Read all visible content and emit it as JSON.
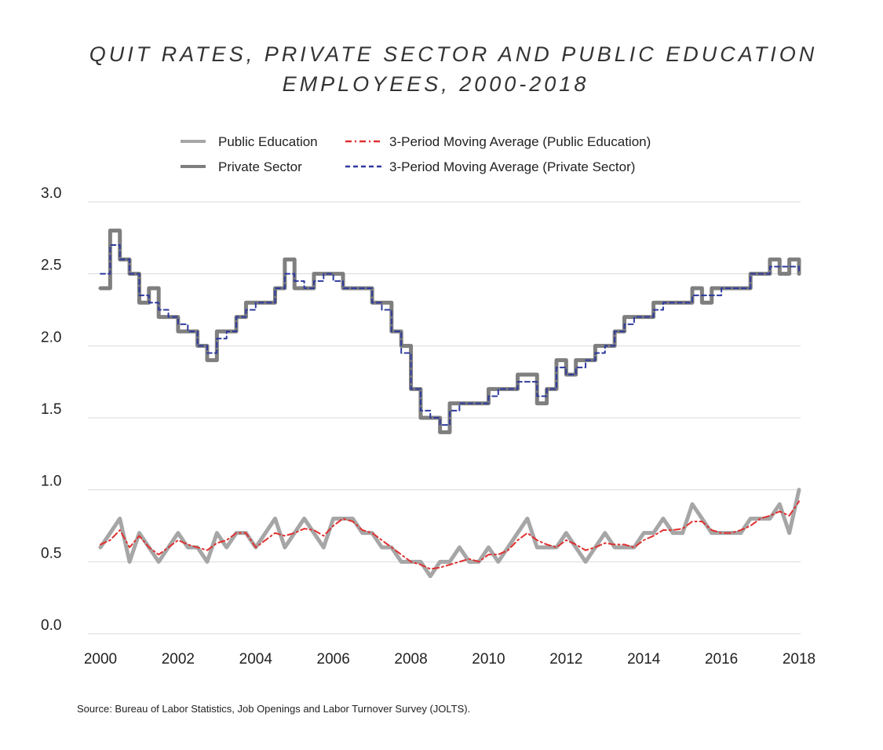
{
  "title_line1": "QUIT RATES, PRIVATE SECTOR AND PUBLIC EDUCATION",
  "title_line2": "EMPLOYEES, 2000-2018",
  "source": "Source: Bureau of Labor Statistics, Job Openings and Labor Turnover Survey (JOLTS).",
  "colors": {
    "public_education": "#a6a6a6",
    "private_sector": "#7f7f7f",
    "ma_public": "#e03030",
    "ma_private": "#2e3a9e",
    "grid": "#d9d9d9"
  },
  "chart_data": {
    "type": "line",
    "title": "QUIT RATES, PRIVATE SECTOR AND PUBLIC EDUCATION EMPLOYEES, 2000-2018",
    "xlabel": "",
    "ylabel": "",
    "ylim": [
      0.0,
      3.0
    ],
    "xlim": [
      2000,
      2018
    ],
    "yticks": [
      "0.0",
      "0.5",
      "1.0",
      "1.5",
      "2.0",
      "2.5",
      "3.0"
    ],
    "xticks": [
      "2000",
      "2002",
      "2004",
      "2006",
      "2008",
      "2010",
      "2012",
      "2014",
      "2016",
      "2018"
    ],
    "grid": true,
    "legend_position": "top",
    "legend": [
      {
        "label": "Public Education",
        "style": "solid",
        "color": "#a6a6a6"
      },
      {
        "label": "3-Period Moving Average (Public Education)",
        "style": "dash-dot",
        "color": "#e03030"
      },
      {
        "label": "Private Sector",
        "style": "solid",
        "color": "#7f7f7f"
      },
      {
        "label": "3-Period Moving Average (Private Sector)",
        "style": "dashed",
        "color": "#2e3a9e"
      }
    ],
    "series": [
      {
        "name": "Private Sector",
        "x": [
          2000.0,
          2000.25,
          2000.5,
          2000.75,
          2001.0,
          2001.25,
          2001.5,
          2001.75,
          2002.0,
          2002.25,
          2002.5,
          2002.75,
          2003.0,
          2003.25,
          2003.5,
          2003.75,
          2004.0,
          2004.25,
          2004.5,
          2004.75,
          2005.0,
          2005.25,
          2005.5,
          2005.75,
          2006.0,
          2006.25,
          2006.5,
          2006.75,
          2007.0,
          2007.25,
          2007.5,
          2007.75,
          2008.0,
          2008.25,
          2008.5,
          2008.75,
          2009.0,
          2009.25,
          2009.5,
          2009.75,
          2010.0,
          2010.25,
          2010.5,
          2010.75,
          2011.0,
          2011.25,
          2011.5,
          2011.75,
          2012.0,
          2012.25,
          2012.5,
          2012.75,
          2013.0,
          2013.25,
          2013.5,
          2013.75,
          2014.0,
          2014.25,
          2014.5,
          2014.75,
          2015.0,
          2015.25,
          2015.5,
          2015.75,
          2016.0,
          2016.25,
          2016.5,
          2016.75,
          2017.0,
          2017.25,
          2017.5,
          2017.75,
          2018.0
        ],
        "values": [
          2.4,
          2.8,
          2.6,
          2.5,
          2.3,
          2.4,
          2.2,
          2.2,
          2.1,
          2.1,
          2.0,
          1.9,
          2.1,
          2.1,
          2.2,
          2.3,
          2.3,
          2.3,
          2.4,
          2.6,
          2.4,
          2.4,
          2.5,
          2.5,
          2.5,
          2.4,
          2.4,
          2.4,
          2.3,
          2.3,
          2.1,
          2.0,
          1.7,
          1.5,
          1.5,
          1.4,
          1.6,
          1.6,
          1.6,
          1.6,
          1.7,
          1.7,
          1.7,
          1.8,
          1.8,
          1.6,
          1.7,
          1.9,
          1.8,
          1.9,
          1.9,
          2.0,
          2.0,
          2.1,
          2.2,
          2.2,
          2.2,
          2.3,
          2.3,
          2.3,
          2.3,
          2.4,
          2.3,
          2.4,
          2.4,
          2.4,
          2.4,
          2.5,
          2.5,
          2.6,
          2.5,
          2.6,
          2.5
        ]
      },
      {
        "name": "3-Period Moving Average (Private Sector)",
        "x": [
          2000.0,
          2000.25,
          2000.5,
          2000.75,
          2001.0,
          2001.25,
          2001.5,
          2001.75,
          2002.0,
          2002.25,
          2002.5,
          2002.75,
          2003.0,
          2003.25,
          2003.5,
          2003.75,
          2004.0,
          2004.25,
          2004.5,
          2004.75,
          2005.0,
          2005.25,
          2005.5,
          2005.75,
          2006.0,
          2006.25,
          2006.5,
          2006.75,
          2007.0,
          2007.25,
          2007.5,
          2007.75,
          2008.0,
          2008.25,
          2008.5,
          2008.75,
          2009.0,
          2009.25,
          2009.5,
          2009.75,
          2010.0,
          2010.25,
          2010.5,
          2010.75,
          2011.0,
          2011.25,
          2011.5,
          2011.75,
          2012.0,
          2012.25,
          2012.5,
          2012.75,
          2013.0,
          2013.25,
          2013.5,
          2013.75,
          2014.0,
          2014.25,
          2014.5,
          2014.75,
          2015.0,
          2015.25,
          2015.5,
          2015.75,
          2016.0,
          2016.25,
          2016.5,
          2016.75,
          2017.0,
          2017.25,
          2017.5,
          2017.75,
          2018.0
        ],
        "values": [
          2.5,
          2.7,
          2.6,
          2.5,
          2.35,
          2.3,
          2.25,
          2.2,
          2.15,
          2.1,
          2.0,
          1.95,
          2.05,
          2.1,
          2.2,
          2.25,
          2.3,
          2.3,
          2.4,
          2.5,
          2.45,
          2.4,
          2.45,
          2.5,
          2.45,
          2.4,
          2.4,
          2.4,
          2.3,
          2.25,
          2.1,
          1.95,
          1.7,
          1.55,
          1.5,
          1.45,
          1.55,
          1.6,
          1.6,
          1.6,
          1.65,
          1.7,
          1.7,
          1.75,
          1.75,
          1.65,
          1.7,
          1.85,
          1.8,
          1.85,
          1.9,
          1.95,
          2.0,
          2.1,
          2.15,
          2.2,
          2.2,
          2.25,
          2.3,
          2.3,
          2.3,
          2.35,
          2.35,
          2.35,
          2.4,
          2.4,
          2.4,
          2.5,
          2.5,
          2.55,
          2.55,
          2.55,
          2.5
        ]
      },
      {
        "name": "Public Education",
        "x": [
          2000.0,
          2000.25,
          2000.5,
          2000.75,
          2001.0,
          2001.25,
          2001.5,
          2001.75,
          2002.0,
          2002.25,
          2002.5,
          2002.75,
          2003.0,
          2003.25,
          2003.5,
          2003.75,
          2004.0,
          2004.25,
          2004.5,
          2004.75,
          2005.0,
          2005.25,
          2005.5,
          2005.75,
          2006.0,
          2006.25,
          2006.5,
          2006.75,
          2007.0,
          2007.25,
          2007.5,
          2007.75,
          2008.0,
          2008.25,
          2008.5,
          2008.75,
          2009.0,
          2009.25,
          2009.5,
          2009.75,
          2010.0,
          2010.25,
          2010.5,
          2010.75,
          2011.0,
          2011.25,
          2011.5,
          2011.75,
          2012.0,
          2012.25,
          2012.5,
          2012.75,
          2013.0,
          2013.25,
          2013.5,
          2013.75,
          2014.0,
          2014.25,
          2014.5,
          2014.75,
          2015.0,
          2015.25,
          2015.5,
          2015.75,
          2016.0,
          2016.25,
          2016.5,
          2016.75,
          2017.0,
          2017.25,
          2017.5,
          2017.75,
          2018.0
        ],
        "values": [
          0.6,
          0.7,
          0.8,
          0.5,
          0.7,
          0.6,
          0.5,
          0.6,
          0.7,
          0.6,
          0.6,
          0.5,
          0.7,
          0.6,
          0.7,
          0.7,
          0.6,
          0.7,
          0.8,
          0.6,
          0.7,
          0.8,
          0.7,
          0.6,
          0.8,
          0.8,
          0.8,
          0.7,
          0.7,
          0.6,
          0.6,
          0.5,
          0.5,
          0.5,
          0.4,
          0.5,
          0.5,
          0.6,
          0.5,
          0.5,
          0.6,
          0.5,
          0.6,
          0.7,
          0.8,
          0.6,
          0.6,
          0.6,
          0.7,
          0.6,
          0.5,
          0.6,
          0.7,
          0.6,
          0.6,
          0.6,
          0.7,
          0.7,
          0.8,
          0.7,
          0.7,
          0.9,
          0.8,
          0.7,
          0.7,
          0.7,
          0.7,
          0.8,
          0.8,
          0.8,
          0.9,
          0.7,
          1.0
        ]
      },
      {
        "name": "3-Period Moving Average (Public Education)",
        "x": [
          2000.0,
          2000.25,
          2000.5,
          2000.75,
          2001.0,
          2001.25,
          2001.5,
          2001.75,
          2002.0,
          2002.25,
          2002.5,
          2002.75,
          2003.0,
          2003.25,
          2003.5,
          2003.75,
          2004.0,
          2004.25,
          2004.5,
          2004.75,
          2005.0,
          2005.25,
          2005.5,
          2005.75,
          2006.0,
          2006.25,
          2006.5,
          2006.75,
          2007.0,
          2007.25,
          2007.5,
          2007.75,
          2008.0,
          2008.25,
          2008.5,
          2008.75,
          2009.0,
          2009.25,
          2009.5,
          2009.75,
          2010.0,
          2010.25,
          2010.5,
          2010.75,
          2011.0,
          2011.25,
          2011.5,
          2011.75,
          2012.0,
          2012.25,
          2012.5,
          2012.75,
          2013.0,
          2013.25,
          2013.5,
          2013.75,
          2014.0,
          2014.25,
          2014.5,
          2014.75,
          2015.0,
          2015.25,
          2015.5,
          2015.75,
          2016.0,
          2016.25,
          2016.5,
          2016.75,
          2017.0,
          2017.25,
          2017.5,
          2017.75,
          2018.0
        ],
        "values": [
          0.62,
          0.65,
          0.72,
          0.6,
          0.68,
          0.6,
          0.55,
          0.6,
          0.65,
          0.62,
          0.6,
          0.58,
          0.63,
          0.65,
          0.7,
          0.7,
          0.6,
          0.65,
          0.7,
          0.68,
          0.7,
          0.73,
          0.72,
          0.68,
          0.75,
          0.8,
          0.78,
          0.72,
          0.7,
          0.65,
          0.6,
          0.55,
          0.5,
          0.48,
          0.45,
          0.46,
          0.48,
          0.5,
          0.52,
          0.5,
          0.55,
          0.55,
          0.58,
          0.65,
          0.7,
          0.65,
          0.62,
          0.6,
          0.65,
          0.62,
          0.58,
          0.6,
          0.63,
          0.62,
          0.62,
          0.6,
          0.65,
          0.68,
          0.72,
          0.72,
          0.73,
          0.78,
          0.78,
          0.72,
          0.7,
          0.7,
          0.72,
          0.75,
          0.8,
          0.82,
          0.85,
          0.82,
          0.92
        ]
      }
    ]
  }
}
